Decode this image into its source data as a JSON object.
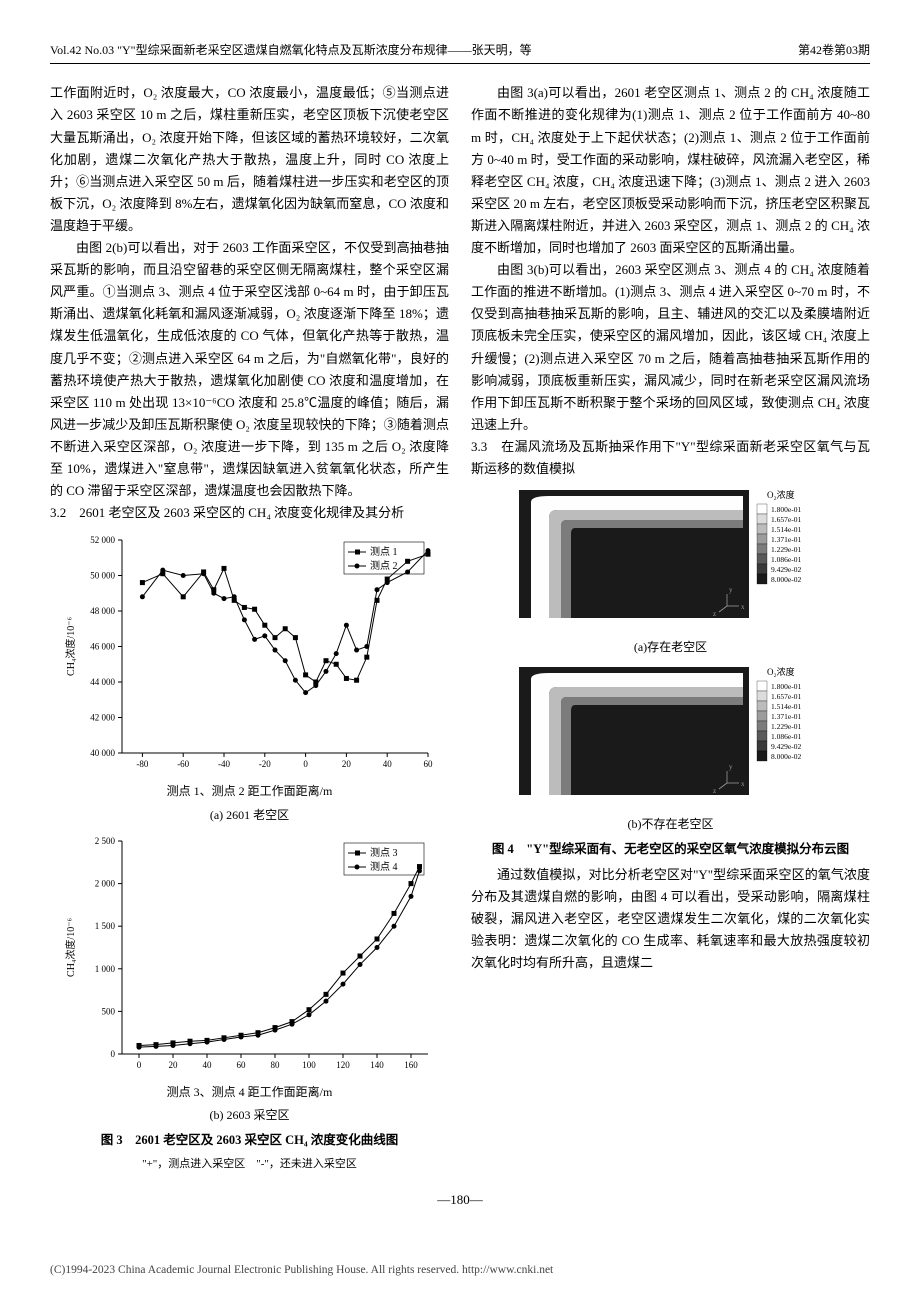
{
  "header": {
    "left": "Vol.42 No.03 \"Y\"型综采面新老采空区遗煤自燃氧化特点及瓦斯浓度分布规律——张天明，等",
    "right": "第42卷第03期"
  },
  "left_col": {
    "p1": "工作面附近时，O₂ 浓度最大，CO 浓度最小，温度最低；⑤当测点进入 2603 采空区 10 m 之后，煤柱重新压实，老空区顶板下沉使老空区大量瓦斯涌出，O₂ 浓度开始下降，但该区域的蓄热环境较好，二次氧化加剧，遗煤二次氧化产热大于散热，温度上升，同时 CO 浓度上升；⑥当测点进入采空区 50 m 后，随着煤柱进一步压实和老空区的顶板下沉，O₂ 浓度降到 8%左右，遗煤氧化因为缺氧而窒息，CO 浓度和温度趋于平缓。",
    "p2": "由图 2(b)可以看出，对于 2603 工作面采空区，不仅受到高抽巷抽采瓦斯的影响，而且沿空留巷的采空区侧无隔离煤柱，整个采空区漏风严重。①当测点 3、测点 4 位于采空区浅部 0~64 m 时，由于卸压瓦斯涌出、遗煤氧化耗氧和漏风逐渐减弱，O₂ 浓度逐渐下降至 18%；遗煤发生低温氧化，生成低浓度的 CO 气体，但氧化产热等于散热，温度几乎不变；②测点进入采空区 64 m 之后，为\"自燃氧化带\"，良好的蓄热环境使产热大于散热，遗煤氧化加剧使 CO 浓度和温度增加，在采空区 110 m 处出现 13×10⁻⁶CO 浓度和 25.8℃温度的峰值；随后，漏风进一步减少及卸压瓦斯积聚使 O₂ 浓度呈现较快的下降；③随着测点不断进入采空区深部，O₂ 浓度进一步下降，到 135 m 之后 O₂ 浓度降至 10%，遗煤进入\"窒息带\"，遗煤因缺氧进入贫氧氧化状态，所产生的 CO 滞留于采空区深部，遗煤温度也会因散热下降。",
    "sec32_num": "3.2",
    "sec32_title": "2601 老空区及 2603 采空区的 CH₄ 浓度变化规律及其分析",
    "chart_a": {
      "type": "line",
      "title": "(a) 2601 老空区",
      "xlabel": "测点 1、测点 2 距工作面距离/m",
      "ylabel": "CH₄浓度/10⁻⁶",
      "xlim": [
        -90,
        60
      ],
      "ylim": [
        40000,
        52000
      ],
      "xticks": [
        -80,
        -60,
        -40,
        -20,
        0,
        20,
        40,
        60
      ],
      "yticks": [
        40000,
        42000,
        44000,
        46000,
        48000,
        50000,
        52000
      ],
      "ytick_labels": [
        "40 000",
        "42 000",
        "44 000",
        "46 000",
        "48 000",
        "50 000",
        "52 000"
      ],
      "series": [
        {
          "name": "测点 1",
          "marker": "square",
          "color": "#000000",
          "x": [
            -80,
            -70,
            -60,
            -50,
            -45,
            -40,
            -35,
            -30,
            -25,
            -20,
            -15,
            -10,
            -5,
            0,
            5,
            10,
            15,
            20,
            25,
            30,
            35,
            40,
            50,
            60
          ],
          "y": [
            49600,
            50100,
            48800,
            50200,
            49200,
            50400,
            48600,
            48200,
            48100,
            47200,
            46500,
            47000,
            46500,
            44400,
            44000,
            45200,
            45000,
            44200,
            44100,
            45400,
            48600,
            49800,
            50800,
            51200
          ]
        },
        {
          "name": "测点 2",
          "marker": "circle",
          "color": "#000000",
          "x": [
            -80,
            -70,
            -60,
            -50,
            -45,
            -40,
            -35,
            -30,
            -25,
            -20,
            -15,
            -10,
            -5,
            0,
            5,
            10,
            15,
            20,
            25,
            30,
            35,
            40,
            50,
            60
          ],
          "y": [
            48800,
            50300,
            50000,
            50100,
            49000,
            48700,
            48800,
            47500,
            46400,
            46600,
            45800,
            45200,
            44100,
            43400,
            43800,
            44600,
            45600,
            47200,
            45800,
            46000,
            49200,
            49600,
            50200,
            51400
          ]
        }
      ],
      "tick_fontsize": 9,
      "label_fontsize": 10,
      "background_color": "#ffffff",
      "axis_color": "#000000",
      "line_width": 1
    },
    "chart_b": {
      "type": "line",
      "title": "(b) 2603 采空区",
      "xlabel": "测点 3、测点 4 距工作面距离/m",
      "ylabel": "CH₄浓度/10⁻⁶",
      "xlim": [
        -10,
        170
      ],
      "ylim": [
        0,
        2500
      ],
      "xticks": [
        0,
        20,
        40,
        60,
        80,
        100,
        120,
        140,
        160
      ],
      "yticks": [
        0,
        500,
        1000,
        1500,
        2000,
        2500
      ],
      "ytick_labels": [
        "0",
        "500",
        "1 000",
        "1 500",
        "2 000",
        "2 500"
      ],
      "series": [
        {
          "name": "测点 3",
          "marker": "square",
          "color": "#000000",
          "x": [
            0,
            10,
            20,
            30,
            40,
            50,
            60,
            70,
            80,
            90,
            100,
            110,
            120,
            130,
            140,
            150,
            160,
            165
          ],
          "y": [
            100,
            110,
            130,
            150,
            160,
            190,
            220,
            250,
            310,
            380,
            520,
            700,
            950,
            1150,
            1350,
            1650,
            2000,
            2200
          ]
        },
        {
          "name": "测点 4",
          "marker": "circle",
          "color": "#000000",
          "x": [
            0,
            10,
            20,
            30,
            40,
            50,
            60,
            70,
            80,
            90,
            100,
            110,
            120,
            130,
            140,
            150,
            160,
            165
          ],
          "y": [
            80,
            90,
            100,
            120,
            140,
            170,
            200,
            220,
            280,
            350,
            460,
            620,
            820,
            1050,
            1250,
            1500,
            1850,
            2150
          ]
        }
      ],
      "tick_fontsize": 9,
      "label_fontsize": 10,
      "background_color": "#ffffff",
      "axis_color": "#000000",
      "line_width": 1
    },
    "fig3_label": "图 3　2601 老空区及 2603 采空区 CH₄ 浓度变化曲线图",
    "fig3_note": "\"+\"，测点进入采空区　\"-\"，还未进入采空区"
  },
  "right_col": {
    "p1": "由图 3(a)可以看出，2601 老空区测点 1、测点 2 的 CH₄ 浓度随工作面不断推进的变化规律为(1)测点 1、测点 2 位于工作面前方 40~80 m 时，CH₄ 浓度处于上下起伏状态；(2)测点 1、测点 2 位于工作面前方 0~40 m 时，受工作面的采动影响，煤柱破碎，风流漏入老空区，稀释老空区 CH₄ 浓度，CH₄ 浓度迅速下降；(3)测点 1、测点 2 进入 2603 采空区 20 m 左右，老空区顶板受采动影响而下沉，挤压老空区积聚瓦斯进入隔离煤柱附近，并进入 2603 采空区，测点 1、测点 2 的 CH₄ 浓度不断增加，同时也增加了 2603 面采空区的瓦斯涌出量。",
    "p2": "由图 3(b)可以看出，2603 采空区测点 3、测点 4 的 CH₄ 浓度随着工作面的推进不断增加。(1)测点 3、测点 4 进入采空区 0~70 m 时，不仅受到高抽巷抽采瓦斯的影响，且主、辅进风的交汇以及柔膜墙附近顶底板未完全压实，使采空区的漏风增加，因此，该区域 CH₄ 浓度上升缓慢；(2)测点进入采空区 70 m 之后，随着高抽巷抽采瓦斯作用的影响减弱，顶底板重新压实，漏风减少，同时在新老采空区漏风流场作用下卸压瓦斯不断积聚于整个采场的回风区域，致使测点 CH₄ 浓度迅速上升。",
    "sec33_num": "3.3",
    "sec33_title": "在漏风流场及瓦斯抽采作用下\"Y\"型综采面新老采空区氧气与瓦斯运移的数值模拟",
    "sim_a": {
      "label": "(a)存在老空区",
      "legend_title": "O₂浓度",
      "legend_values": [
        "1.800e-01",
        "1.657e-01",
        "1.514e-01",
        "1.371e-01",
        "1.229e-01",
        "1.086e-01",
        "9.429e-02",
        "8.000e-02"
      ],
      "colors": [
        "#fefefe",
        "#dcdcdc",
        "#bcbcbc",
        "#9c9c9c",
        "#7c7c7c",
        "#5a5a5a",
        "#3a3a3a",
        "#1a1a1a"
      ],
      "background_color": "#1a1a1a",
      "axes": "y↑ z← x"
    },
    "sim_b": {
      "label": "(b)不存在老空区",
      "legend_title": "O₂浓度",
      "legend_values": [
        "1.800e-01",
        "1.657e-01",
        "1.514e-01",
        "1.371e-01",
        "1.229e-01",
        "1.086e-01",
        "9.429e-02",
        "8.000e-02"
      ],
      "colors": [
        "#fefefe",
        "#dcdcdc",
        "#bcbcbc",
        "#9c9c9c",
        "#7c7c7c",
        "#5a5a5a",
        "#3a3a3a",
        "#1a1a1a"
      ],
      "background_color": "#1a1a1a",
      "axes": "y↑ z← x"
    },
    "fig4_label": "图 4　\"Y\"型综采面有、无老空区的采空区氧气浓度模拟分布云图",
    "p3": "通过数值模拟，对比分析老空区对\"Y\"型综采面采空区的氧气浓度分布及其遗煤自燃的影响，由图 4 可以看出，受采动影响，隔离煤柱破裂，漏风进入老空区，老空区遗煤发生二次氧化，煤的二次氧化实验表明：遗煤二次氧化的 CO 生成率、耗氧速率和最大放热强度较初次氧化时均有所升高，且遗煤二"
  },
  "page_num": "—180—",
  "copyright": "(C)1994-2023 China Academic Journal Electronic Publishing House. All rights reserved.    http://www.cnki.net"
}
